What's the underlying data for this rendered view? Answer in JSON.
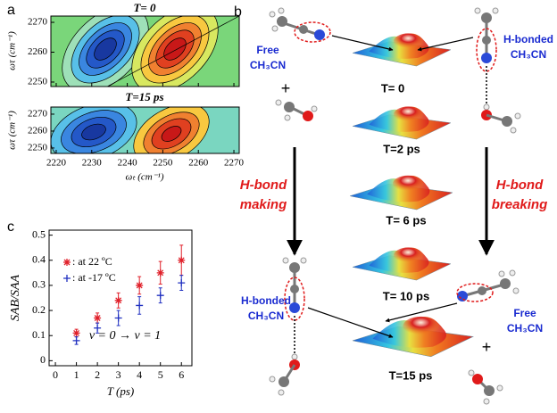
{
  "panel_a": {
    "label": "a",
    "xlabel": "ωₜ (cm⁻¹)",
    "ylabel": "ωτ (cm⁻¹)",
    "xlim": [
      2218.5,
      2271.5
    ],
    "xticks": [
      2220,
      2230,
      2240,
      2250,
      2260,
      2270
    ],
    "plots": [
      {
        "title": "T= 0",
        "ylim": [
          2248.5,
          2272.1
        ],
        "yticks": [
          2250,
          2260,
          2270
        ]
      },
      {
        "title": "T=15 ps",
        "ylim": [
          2246.8,
          2274.2
        ],
        "yticks": [
          2250,
          2260,
          2270
        ]
      }
    ]
  },
  "panel_b": {
    "label": "b",
    "free_top": [
      "Free",
      "CH₃CN"
    ],
    "hbonded_top": [
      "H-bonded",
      "CH₃CN"
    ],
    "hbonded_bottom": [
      "H-bonded",
      "CH₃CN"
    ],
    "free_bottom": [
      "Free",
      "CH₃CN"
    ],
    "plus": "+",
    "making": [
      "H-bond",
      "making"
    ],
    "breaking": [
      "H-bond",
      "breaking"
    ],
    "surfaces": [
      "T= 0",
      "T=2 ps",
      "T= 6 ps",
      "T= 10 ps",
      "T=15 ps"
    ]
  },
  "chart_data": {
    "type": "scatter",
    "label": "c",
    "xlabel": "T (ps)",
    "ylabel": "SAB/SAA",
    "annotation": "v = 0 → v = 1",
    "x": [
      1,
      2,
      3,
      4,
      5,
      6
    ],
    "series": [
      {
        "name": ":  at  22 ºC",
        "color": "#e0202a",
        "marker": "star",
        "values": [
          0.11,
          0.17,
          0.24,
          0.3,
          0.35,
          0.4
        ],
        "errors": [
          0.015,
          0.02,
          0.03,
          0.035,
          0.045,
          0.06
        ]
      },
      {
        "name": ":  at -17 ºC",
        "color": "#2030c0",
        "marker": "plus",
        "values": [
          0.08,
          0.13,
          0.17,
          0.22,
          0.26,
          0.31
        ],
        "errors": [
          0.015,
          0.02,
          0.03,
          0.035,
          0.03,
          0.03
        ]
      }
    ],
    "xlim": [
      -0.3,
      6.5
    ],
    "ylim": [
      -0.02,
      0.52
    ],
    "xticks": [
      0,
      1,
      2,
      3,
      4,
      5,
      6
    ],
    "yticks": [
      0,
      0.1,
      0.2,
      0.3,
      0.4,
      0.5
    ]
  }
}
